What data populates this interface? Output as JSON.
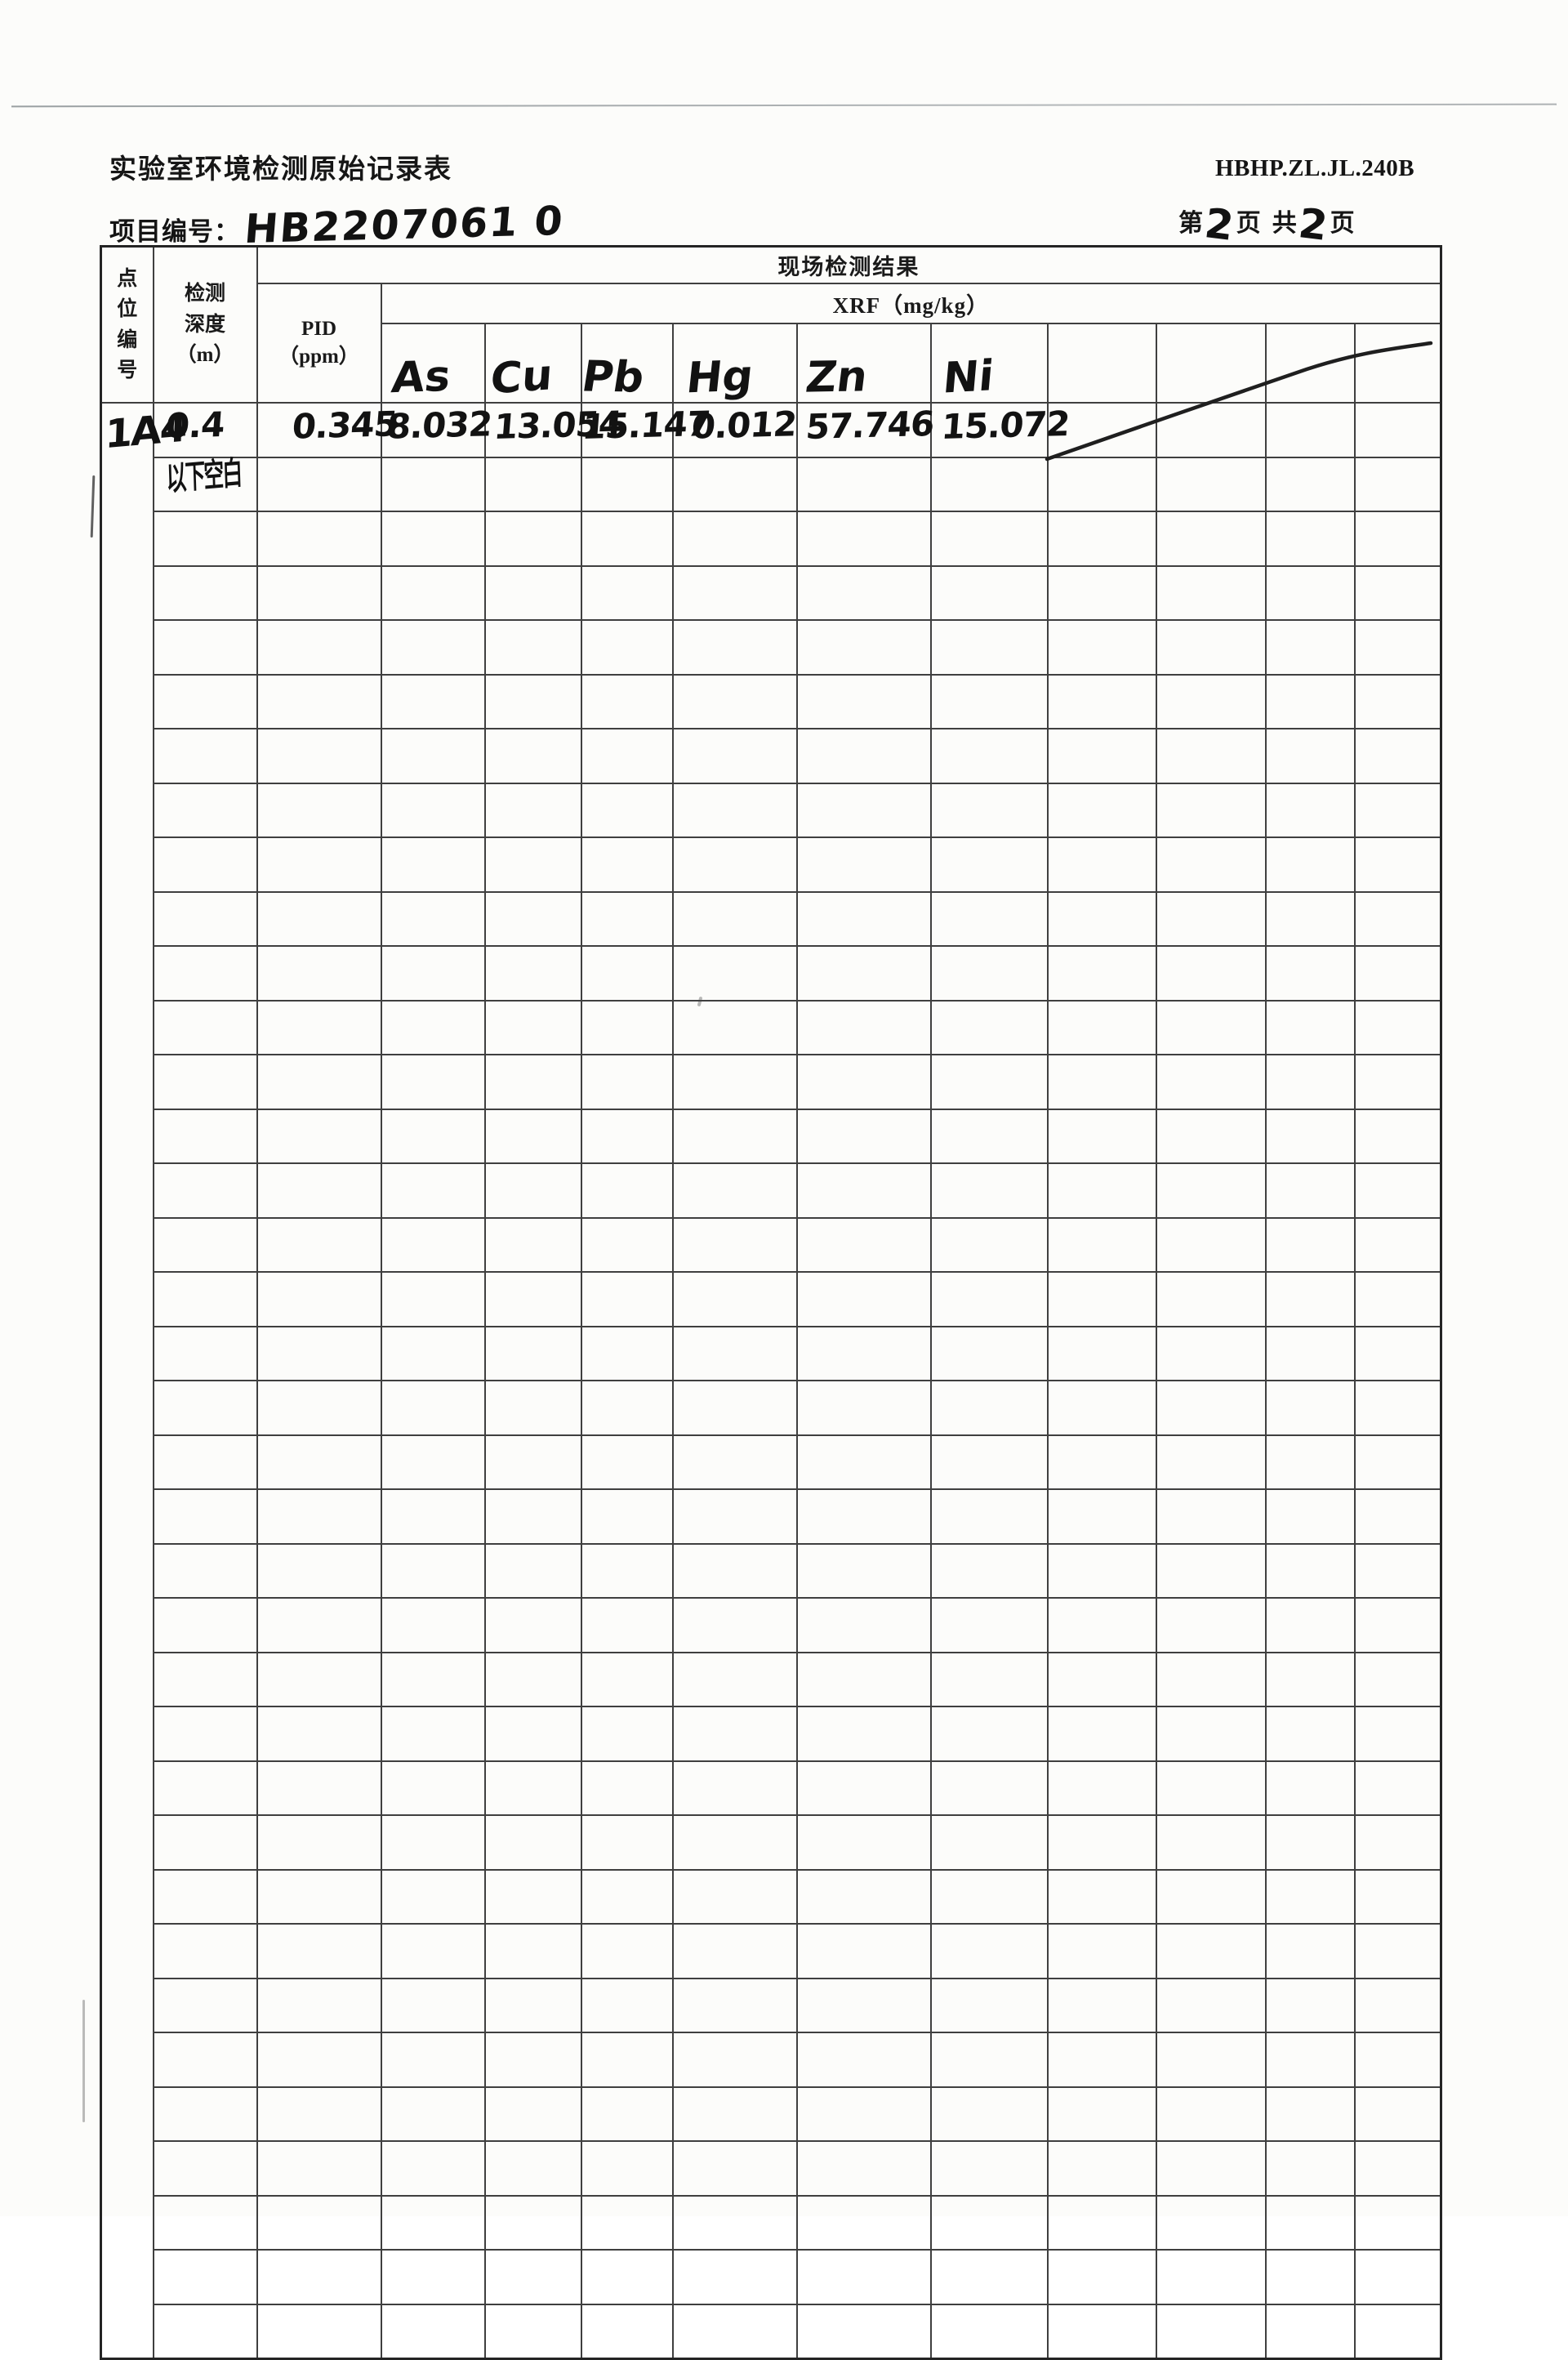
{
  "page": {
    "title": "实验室环境检测原始记录表",
    "project_label": "项目编号：",
    "project_number": "HB2207061 0",
    "doc_code": "HBHP.ZL.JL.240B",
    "page_word_1": "第",
    "page_number": "2",
    "page_word_2": "页",
    "page_word_3": "共",
    "page_total": "2",
    "page_word_4": "页"
  },
  "table": {
    "header": {
      "point_col": "点位编号",
      "depth_col_lines": [
        "检测",
        "深度",
        "（m）"
      ],
      "result_group": "现场检测结果",
      "xrf_group": "XRF（mg/kg）",
      "pid_lines": [
        "PID",
        "（ppm）"
      ],
      "element_cols": [
        "As",
        "Cu",
        "Pb",
        "Hg",
        "Zn",
        "Ni"
      ],
      "empty_header_cols": 4
    },
    "body": {
      "row_count": 36,
      "col_count": 13,
      "point_id": "1A4",
      "rows": [
        {
          "depth": "0.4",
          "pid": "0.345",
          "values": [
            "8.032",
            "13.054",
            "15.147",
            "0.012",
            "57.746",
            "15.072"
          ]
        },
        {
          "depth": "以下空白",
          "pid": "",
          "values": []
        }
      ]
    }
  },
  "colors": {
    "ink": "#121212",
    "grid": "#3f3f3f",
    "strike_line": "#1f1f1f",
    "paper": "#fcfcfa"
  }
}
